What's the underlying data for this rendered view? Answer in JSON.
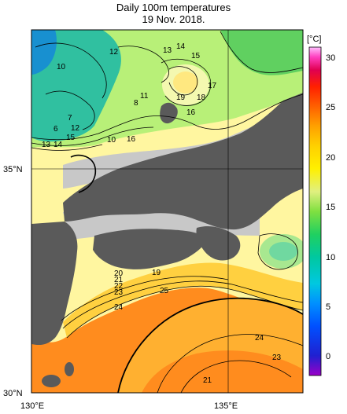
{
  "header": {
    "title": "Daily 100m temperatures",
    "date": "19 Nov. 2018."
  },
  "axes": {
    "lat_labels": [
      "35°N",
      "30°N"
    ],
    "lon_labels": [
      "130°E",
      "135°E"
    ]
  },
  "colorbar": {
    "unit": "[°C]",
    "ticks": [
      "30",
      "25",
      "20",
      "15",
      "10",
      "5",
      "0"
    ]
  },
  "contour_labels": [
    "12",
    "13",
    "14",
    "15",
    "10",
    "17",
    "19",
    "18",
    "11",
    "8",
    "16",
    "7",
    "6",
    "12",
    "13",
    "14",
    "15",
    "10",
    "16",
    "19",
    "25",
    "20",
    "21",
    "22",
    "23",
    "24",
    "24",
    "23",
    "21"
  ],
  "colors": {
    "land": "#5a5a5a",
    "no_data": "#c8c8c8",
    "gridline": "#000000"
  }
}
